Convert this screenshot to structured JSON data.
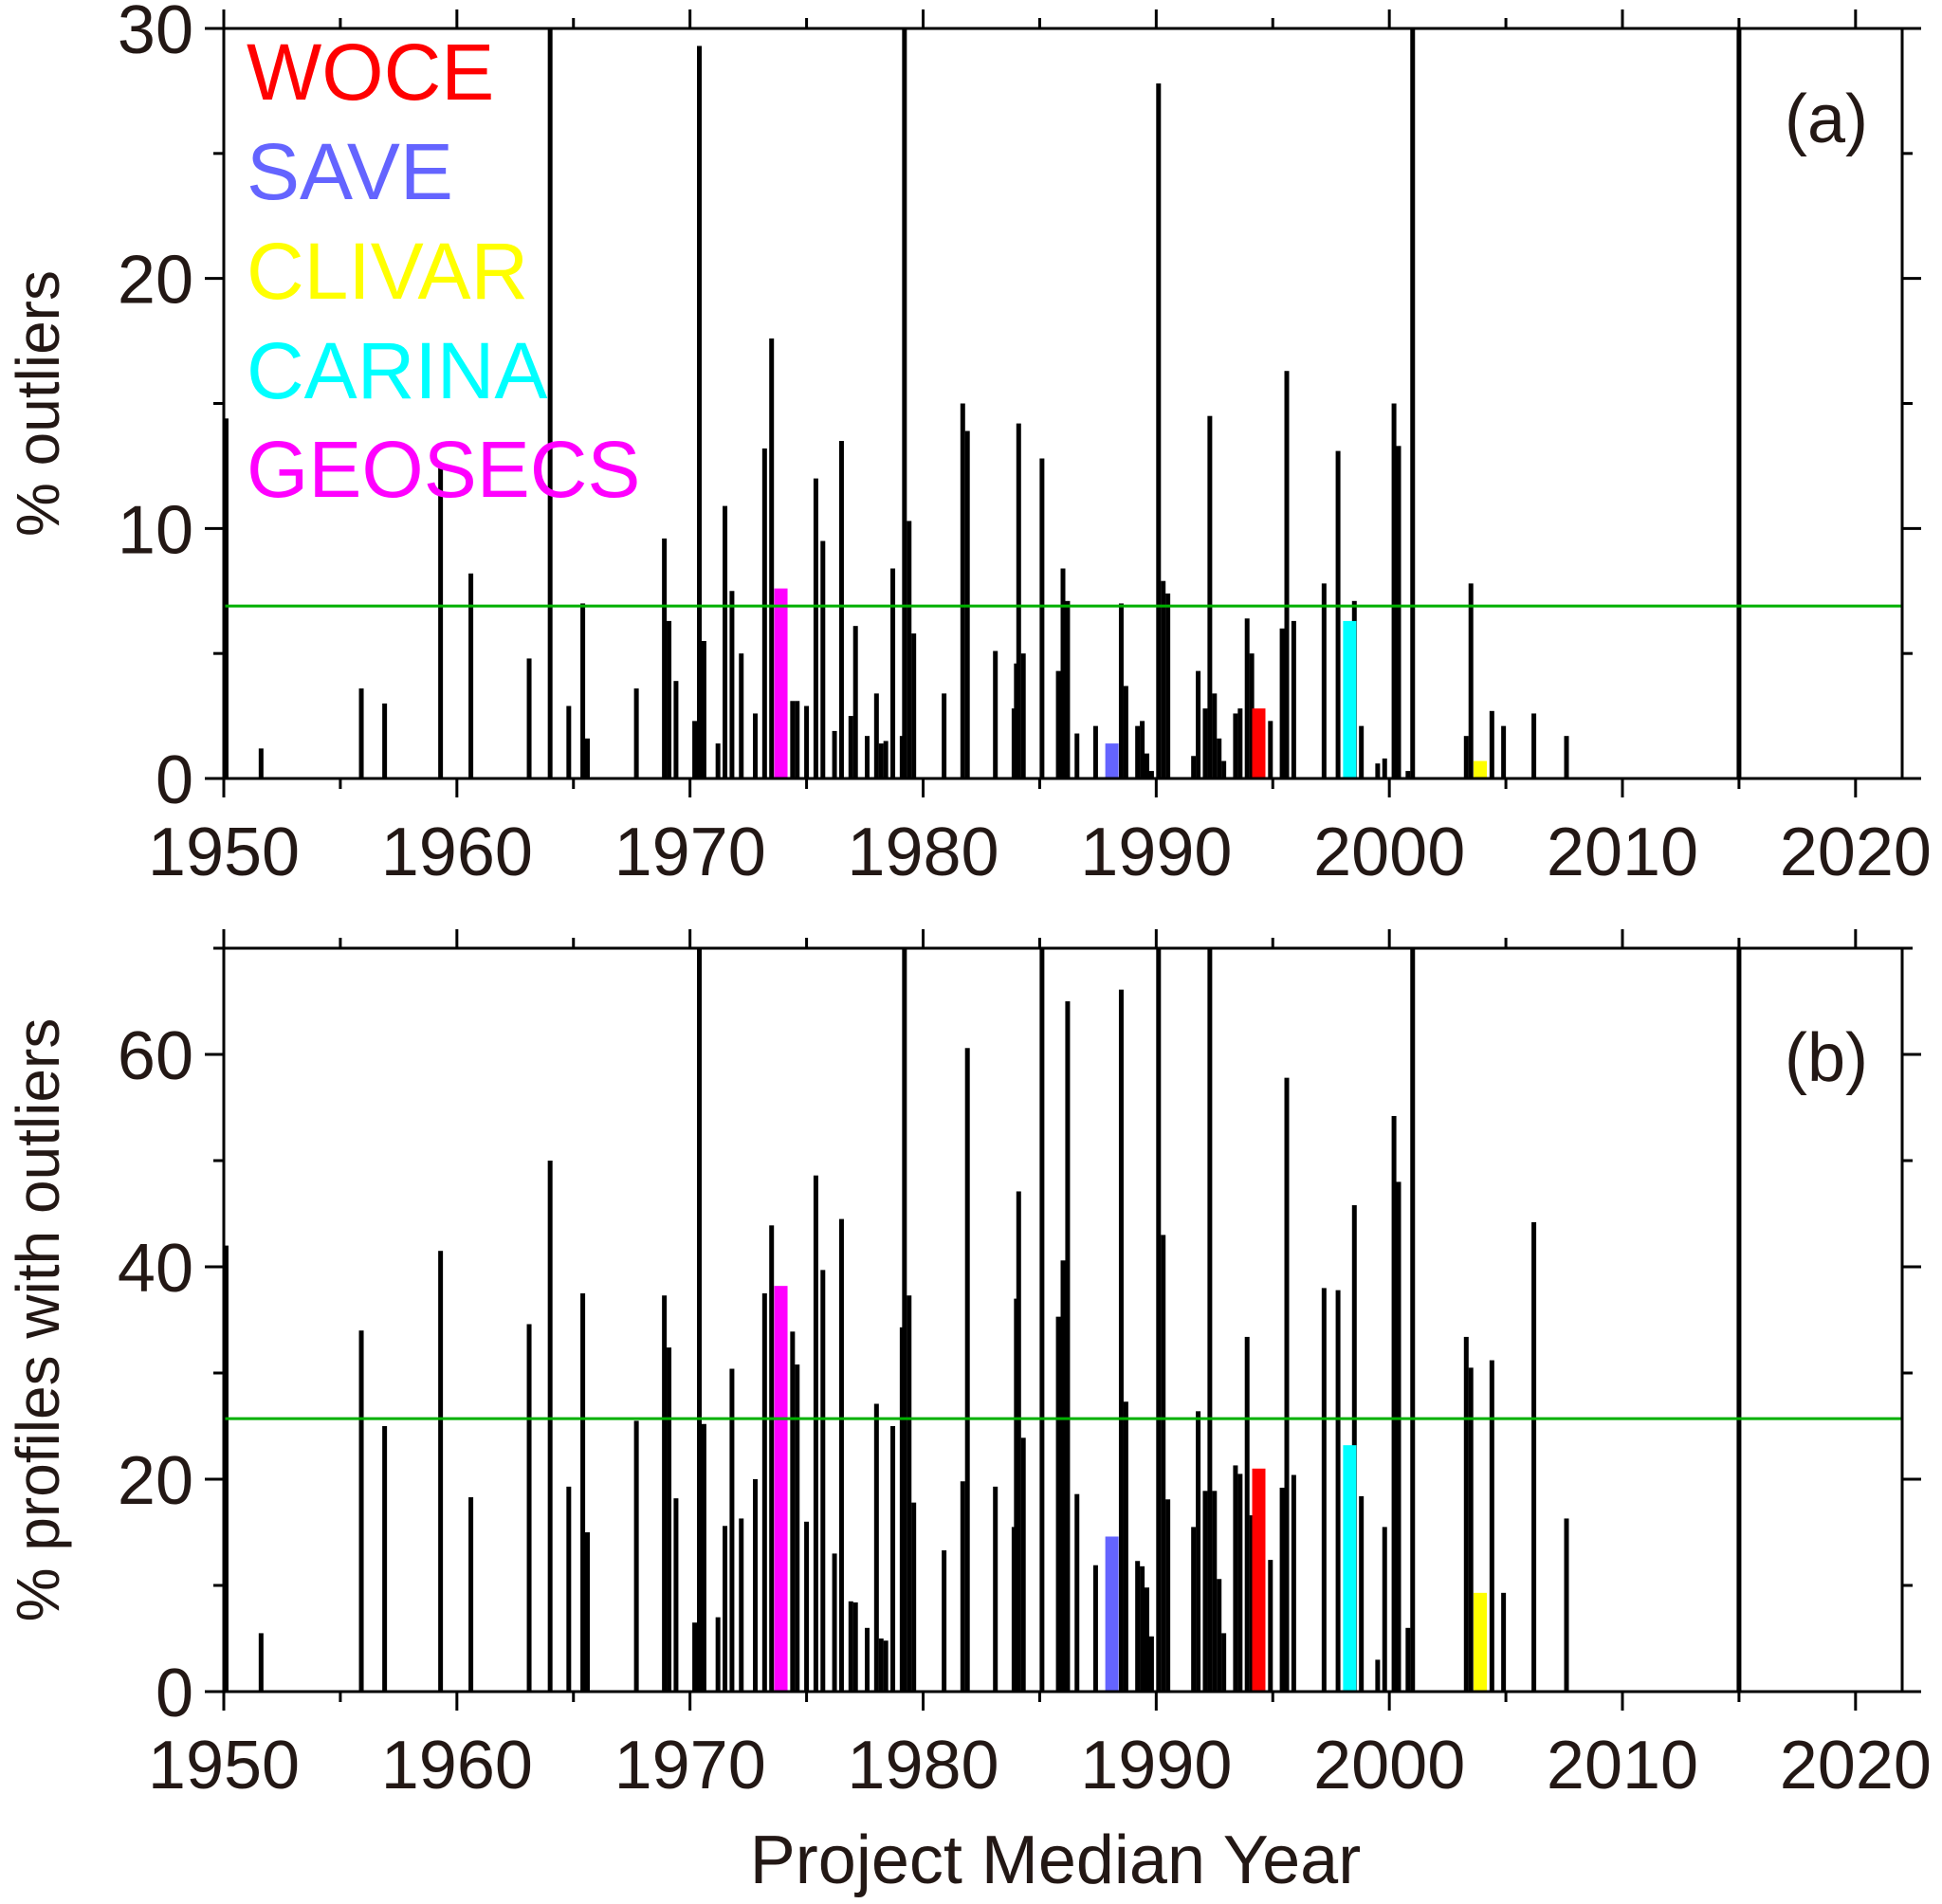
{
  "x_axis": {
    "label": "Project Median Year",
    "range": [
      1950,
      2022
    ],
    "tick_labels": [
      "1950",
      "1960",
      "1970",
      "1980",
      "1990",
      "2000",
      "2010",
      "2020"
    ]
  },
  "legend": {
    "placement": "top-left of panel (a)",
    "entries": [
      {
        "label": "WOCE",
        "color": "#ff0000"
      },
      {
        "label": "SAVE",
        "color": "#6464ff"
      },
      {
        "label": "CLIVAR",
        "color": "#ffff00"
      },
      {
        "label": "CARINA",
        "color": "#00ffff"
      },
      {
        "label": "GEOSECS",
        "color": "#ff00ff"
      }
    ]
  },
  "chart_data": [
    {
      "type": "bar",
      "panel_label": "(a)",
      "ylabel": "% outliers",
      "xlabel": "",
      "ylim": [
        0,
        30
      ],
      "yticks": [
        "0",
        "10",
        "20",
        "30"
      ],
      "grid": false,
      "reference_line": {
        "value": 6.9,
        "color": "#00b000"
      },
      "bars": [
        {
          "x": 1950.1,
          "y": 14.4
        },
        {
          "x": 1951.6,
          "y": 1.2
        },
        {
          "x": 1955.9,
          "y": 3.6
        },
        {
          "x": 1956.9,
          "y": 3.0
        },
        {
          "x": 1959.3,
          "y": 12.6
        },
        {
          "x": 1960.6,
          "y": 8.2
        },
        {
          "x": 1963.1,
          "y": 4.8
        },
        {
          "x": 1964.0,
          "y": 30.0
        },
        {
          "x": 1964.8,
          "y": 2.9
        },
        {
          "x": 1965.4,
          "y": 7.0
        },
        {
          "x": 1965.6,
          "y": 1.6
        },
        {
          "x": 1967.7,
          "y": 3.6
        },
        {
          "x": 1968.9,
          "y": 9.6
        },
        {
          "x": 1969.1,
          "y": 6.3
        },
        {
          "x": 1969.4,
          "y": 3.9
        },
        {
          "x": 1970.2,
          "y": 2.3
        },
        {
          "x": 1970.4,
          "y": 29.3
        },
        {
          "x": 1970.6,
          "y": 5.5
        },
        {
          "x": 1971.2,
          "y": 1.4
        },
        {
          "x": 1971.5,
          "y": 10.9
        },
        {
          "x": 1971.8,
          "y": 7.5
        },
        {
          "x": 1972.2,
          "y": 5.0
        },
        {
          "x": 1972.8,
          "y": 2.6
        },
        {
          "x": 1973.2,
          "y": 13.2
        },
        {
          "x": 1973.5,
          "y": 17.6
        },
        {
          "x": 1974.4,
          "y": 3.1
        },
        {
          "x": 1974.6,
          "y": 3.1
        },
        {
          "x": 1975.0,
          "y": 2.9
        },
        {
          "x": 1975.4,
          "y": 12.0
        },
        {
          "x": 1975.7,
          "y": 9.5
        },
        {
          "x": 1976.2,
          "y": 1.9
        },
        {
          "x": 1976.5,
          "y": 13.5
        },
        {
          "x": 1976.9,
          "y": 2.5
        },
        {
          "x": 1977.1,
          "y": 6.1
        },
        {
          "x": 1977.6,
          "y": 1.7
        },
        {
          "x": 1978.0,
          "y": 3.4
        },
        {
          "x": 1978.2,
          "y": 1.4
        },
        {
          "x": 1978.4,
          "y": 1.5
        },
        {
          "x": 1978.7,
          "y": 8.4
        },
        {
          "x": 1979.1,
          "y": 1.7
        },
        {
          "x": 1979.2,
          "y": 30.0
        },
        {
          "x": 1979.4,
          "y": 10.3
        },
        {
          "x": 1979.6,
          "y": 5.8
        },
        {
          "x": 1980.9,
          "y": 3.4
        },
        {
          "x": 1981.7,
          "y": 15.0
        },
        {
          "x": 1981.9,
          "y": 13.9
        },
        {
          "x": 1983.1,
          "y": 5.1
        },
        {
          "x": 1983.9,
          "y": 2.8
        },
        {
          "x": 1984.0,
          "y": 4.6
        },
        {
          "x": 1984.1,
          "y": 14.2
        },
        {
          "x": 1984.3,
          "y": 5.0
        },
        {
          "x": 1985.1,
          "y": 12.8
        },
        {
          "x": 1985.8,
          "y": 4.3
        },
        {
          "x": 1986.0,
          "y": 8.4
        },
        {
          "x": 1986.2,
          "y": 7.1
        },
        {
          "x": 1986.6,
          "y": 1.8
        },
        {
          "x": 1987.4,
          "y": 2.1
        },
        {
          "x": 1988.5,
          "y": 7.0
        },
        {
          "x": 1988.7,
          "y": 3.7
        },
        {
          "x": 1989.2,
          "y": 2.1
        },
        {
          "x": 1989.4,
          "y": 2.3
        },
        {
          "x": 1989.6,
          "y": 1.0
        },
        {
          "x": 1989.8,
          "y": 0.3
        },
        {
          "x": 1990.1,
          "y": 27.8
        },
        {
          "x": 1990.3,
          "y": 7.9
        },
        {
          "x": 1990.5,
          "y": 7.4
        },
        {
          "x": 1991.6,
          "y": 0.9
        },
        {
          "x": 1991.8,
          "y": 4.3
        },
        {
          "x": 1992.1,
          "y": 2.8
        },
        {
          "x": 1992.3,
          "y": 14.5
        },
        {
          "x": 1992.5,
          "y": 3.4
        },
        {
          "x": 1992.7,
          "y": 1.6
        },
        {
          "x": 1992.9,
          "y": 0.7
        },
        {
          "x": 1993.4,
          "y": 2.6
        },
        {
          "x": 1993.6,
          "y": 2.8
        },
        {
          "x": 1993.9,
          "y": 6.4
        },
        {
          "x": 1994.1,
          "y": 5.0
        },
        {
          "x": 1994.9,
          "y": 2.3
        },
        {
          "x": 1995.4,
          "y": 6.0
        },
        {
          "x": 1995.6,
          "y": 16.3
        },
        {
          "x": 1995.9,
          "y": 6.3
        },
        {
          "x": 1997.2,
          "y": 7.8
        },
        {
          "x": 1997.8,
          "y": 13.1
        },
        {
          "x": 1998.5,
          "y": 7.1
        },
        {
          "x": 1998.8,
          "y": 2.1
        },
        {
          "x": 1999.5,
          "y": 0.6
        },
        {
          "x": 1999.8,
          "y": 0.8
        },
        {
          "x": 2000.2,
          "y": 15.0
        },
        {
          "x": 2000.4,
          "y": 13.3
        },
        {
          "x": 2000.8,
          "y": 0.3
        },
        {
          "x": 2001.0,
          "y": 30.0
        },
        {
          "x": 2003.3,
          "y": 1.7
        },
        {
          "x": 2003.5,
          "y": 7.8
        },
        {
          "x": 2004.4,
          "y": 2.7
        },
        {
          "x": 2004.9,
          "y": 2.1
        },
        {
          "x": 2006.2,
          "y": 2.6
        },
        {
          "x": 2007.6,
          "y": 1.7
        },
        {
          "x": 2015.0,
          "y": 30.0
        }
      ],
      "highlighted": [
        {
          "program": "GEOSECS",
          "x": 1973.9,
          "y": 7.6,
          "color": "#ff00ff"
        },
        {
          "program": "SAVE",
          "x": 1988.1,
          "y": 1.4,
          "color": "#6464ff"
        },
        {
          "program": "WOCE",
          "x": 1994.4,
          "y": 2.8,
          "color": "#ff0000"
        },
        {
          "program": "CARINA",
          "x": 1998.3,
          "y": 6.3,
          "color": "#00ffff"
        },
        {
          "program": "CLIVAR",
          "x": 2003.9,
          "y": 0.7,
          "color": "#ffff00"
        }
      ]
    },
    {
      "type": "bar",
      "panel_label": "(b)",
      "ylabel": "% profiles with outliers",
      "xlabel": "Project Median Year",
      "ylim": [
        0,
        70
      ],
      "yticks": [
        "0",
        "20",
        "40",
        "60"
      ],
      "grid": false,
      "reference_line": {
        "value": 25.7,
        "color": "#00b000"
      },
      "bars": [
        {
          "x": 1950.1,
          "y": 42.0
        },
        {
          "x": 1951.6,
          "y": 5.5
        },
        {
          "x": 1955.9,
          "y": 34.0
        },
        {
          "x": 1956.9,
          "y": 25.0
        },
        {
          "x": 1959.3,
          "y": 41.5
        },
        {
          "x": 1960.6,
          "y": 18.3
        },
        {
          "x": 1963.1,
          "y": 34.6
        },
        {
          "x": 1964.0,
          "y": 50.0
        },
        {
          "x": 1964.8,
          "y": 19.3
        },
        {
          "x": 1965.4,
          "y": 37.5
        },
        {
          "x": 1965.6,
          "y": 15.0
        },
        {
          "x": 1967.7,
          "y": 25.5
        },
        {
          "x": 1968.9,
          "y": 37.3
        },
        {
          "x": 1969.1,
          "y": 32.4
        },
        {
          "x": 1969.4,
          "y": 18.2
        },
        {
          "x": 1970.2,
          "y": 6.5
        },
        {
          "x": 1970.4,
          "y": 70.0
        },
        {
          "x": 1970.6,
          "y": 25.2
        },
        {
          "x": 1971.2,
          "y": 7.0
        },
        {
          "x": 1971.5,
          "y": 15.6
        },
        {
          "x": 1971.8,
          "y": 30.4
        },
        {
          "x": 1972.2,
          "y": 16.3
        },
        {
          "x": 1972.8,
          "y": 20.0
        },
        {
          "x": 1973.2,
          "y": 37.5
        },
        {
          "x": 1973.5,
          "y": 43.9
        },
        {
          "x": 1974.4,
          "y": 33.9
        },
        {
          "x": 1974.6,
          "y": 30.8
        },
        {
          "x": 1975.0,
          "y": 16.0
        },
        {
          "x": 1975.4,
          "y": 48.6
        },
        {
          "x": 1975.7,
          "y": 39.7
        },
        {
          "x": 1976.2,
          "y": 13.0
        },
        {
          "x": 1976.5,
          "y": 44.5
        },
        {
          "x": 1976.9,
          "y": 8.5
        },
        {
          "x": 1977.1,
          "y": 8.4
        },
        {
          "x": 1977.6,
          "y": 6.0
        },
        {
          "x": 1978.0,
          "y": 27.1
        },
        {
          "x": 1978.2,
          "y": 5.0
        },
        {
          "x": 1978.4,
          "y": 4.8
        },
        {
          "x": 1978.7,
          "y": 25.0
        },
        {
          "x": 1979.1,
          "y": 34.3
        },
        {
          "x": 1979.2,
          "y": 70.0
        },
        {
          "x": 1979.4,
          "y": 37.3
        },
        {
          "x": 1979.6,
          "y": 17.8
        },
        {
          "x": 1980.9,
          "y": 13.3
        },
        {
          "x": 1981.7,
          "y": 19.8
        },
        {
          "x": 1981.9,
          "y": 60.6
        },
        {
          "x": 1983.1,
          "y": 19.3
        },
        {
          "x": 1983.9,
          "y": 15.5
        },
        {
          "x": 1984.0,
          "y": 37.0
        },
        {
          "x": 1984.1,
          "y": 47.1
        },
        {
          "x": 1984.3,
          "y": 23.9
        },
        {
          "x": 1985.1,
          "y": 70.0
        },
        {
          "x": 1985.8,
          "y": 35.3
        },
        {
          "x": 1986.0,
          "y": 40.6
        },
        {
          "x": 1986.2,
          "y": 65.0
        },
        {
          "x": 1986.6,
          "y": 18.6
        },
        {
          "x": 1987.4,
          "y": 11.9
        },
        {
          "x": 1988.5,
          "y": 66.1
        },
        {
          "x": 1988.7,
          "y": 27.3
        },
        {
          "x": 1989.2,
          "y": 12.3
        },
        {
          "x": 1989.4,
          "y": 11.8
        },
        {
          "x": 1989.6,
          "y": 9.8
        },
        {
          "x": 1989.8,
          "y": 5.2
        },
        {
          "x": 1990.1,
          "y": 70.0
        },
        {
          "x": 1990.3,
          "y": 43.0
        },
        {
          "x": 1990.5,
          "y": 18.1
        },
        {
          "x": 1991.6,
          "y": 15.5
        },
        {
          "x": 1991.8,
          "y": 26.4
        },
        {
          "x": 1992.1,
          "y": 18.9
        },
        {
          "x": 1992.3,
          "y": 70.0
        },
        {
          "x": 1992.5,
          "y": 18.9
        },
        {
          "x": 1992.7,
          "y": 10.6
        },
        {
          "x": 1992.9,
          "y": 5.5
        },
        {
          "x": 1993.4,
          "y": 21.3
        },
        {
          "x": 1993.6,
          "y": 20.5
        },
        {
          "x": 1993.9,
          "y": 33.4
        },
        {
          "x": 1994.1,
          "y": 16.6
        },
        {
          "x": 1994.9,
          "y": 12.4
        },
        {
          "x": 1995.4,
          "y": 19.2
        },
        {
          "x": 1995.6,
          "y": 57.8
        },
        {
          "x": 1995.9,
          "y": 20.4
        },
        {
          "x": 1997.2,
          "y": 38.0
        },
        {
          "x": 1997.8,
          "y": 37.8
        },
        {
          "x": 1998.5,
          "y": 45.8
        },
        {
          "x": 1998.8,
          "y": 18.4
        },
        {
          "x": 1999.5,
          "y": 3.0
        },
        {
          "x": 1999.8,
          "y": 15.5
        },
        {
          "x": 2000.2,
          "y": 54.2
        },
        {
          "x": 2000.4,
          "y": 48.0
        },
        {
          "x": 2000.8,
          "y": 6.0
        },
        {
          "x": 2001.0,
          "y": 70.0
        },
        {
          "x": 2003.3,
          "y": 33.4
        },
        {
          "x": 2003.5,
          "y": 30.5
        },
        {
          "x": 2004.4,
          "y": 31.2
        },
        {
          "x": 2004.9,
          "y": 9.3
        },
        {
          "x": 2006.2,
          "y": 44.2
        },
        {
          "x": 2007.6,
          "y": 16.3
        },
        {
          "x": 2015.0,
          "y": 70.0
        }
      ],
      "highlighted": [
        {
          "program": "GEOSECS",
          "x": 1973.9,
          "y": 38.2,
          "color": "#ff00ff"
        },
        {
          "program": "SAVE",
          "x": 1988.1,
          "y": 14.6,
          "color": "#6464ff"
        },
        {
          "program": "WOCE",
          "x": 1994.4,
          "y": 21.0,
          "color": "#ff0000"
        },
        {
          "program": "CARINA",
          "x": 1998.3,
          "y": 23.2,
          "color": "#00ffff"
        },
        {
          "program": "CLIVAR",
          "x": 2003.9,
          "y": 9.3,
          "color": "#ffff00"
        }
      ]
    }
  ]
}
